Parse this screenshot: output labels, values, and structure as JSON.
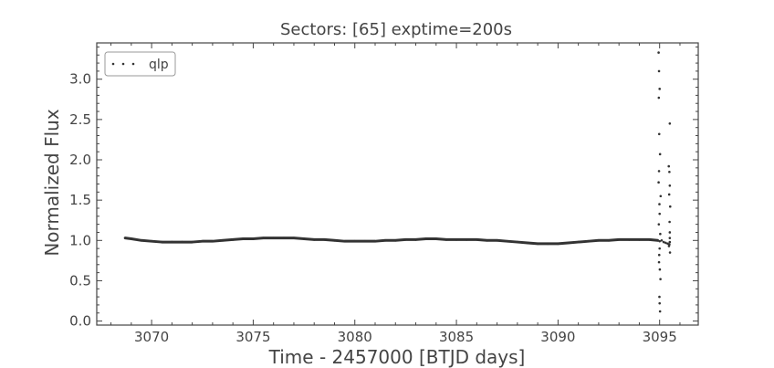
{
  "chart_data": {
    "type": "scatter",
    "title": "Sectors: [65] exptime=200s",
    "xlabel": "Time - 2457000 [BTJD days]",
    "ylabel": "Normalized Flux",
    "xlim": [
      3067.3,
      3096.9
    ],
    "ylim": [
      -0.05,
      3.45
    ],
    "xticks": [
      3070,
      3075,
      3080,
      3085,
      3090,
      3095
    ],
    "xtick_labels": [
      "3070",
      "3075",
      "3080",
      "3085",
      "3090",
      "3095"
    ],
    "yticks": [
      0.0,
      0.5,
      1.0,
      1.5,
      2.0,
      2.5,
      3.0
    ],
    "ytick_labels": [
      "0.0",
      "0.5",
      "1.0",
      "1.5",
      "2.0",
      "2.5",
      "3.0"
    ],
    "grid": false,
    "legend_position": "top-left",
    "series": [
      {
        "name": "qlp",
        "color": "#333333",
        "x": [
          3068.7,
          3069.0,
          3069.5,
          3070.0,
          3070.5,
          3071.0,
          3071.5,
          3072.0,
          3072.5,
          3073.0,
          3073.5,
          3074.0,
          3074.5,
          3075.0,
          3075.5,
          3076.0,
          3076.5,
          3077.0,
          3077.5,
          3078.0,
          3078.5,
          3079.0,
          3079.5,
          3080.0,
          3080.5,
          3081.0,
          3081.5,
          3082.0,
          3082.5,
          3083.0,
          3083.5,
          3084.0,
          3084.5,
          3085.0,
          3085.5,
          3086.0,
          3086.5,
          3087.0,
          3087.5,
          3088.0,
          3088.5,
          3089.0,
          3089.5,
          3090.0,
          3090.5,
          3091.0,
          3091.5,
          3092.0,
          3092.5,
          3093.0,
          3093.5,
          3094.0,
          3094.5,
          3094.9,
          3095.0,
          3095.1,
          3095.2,
          3095.3,
          3095.4,
          3095.5,
          3094.95,
          3094.97,
          3095.0,
          3094.96,
          3094.98,
          3095.02,
          3094.97,
          3094.95,
          3095.05,
          3094.99,
          3095.0,
          3094.96,
          3095.03,
          3095.0,
          3094.98,
          3094.97,
          3095.01,
          3095.04,
          3094.99,
          3095.0,
          3095.02,
          3095.5,
          3095.45,
          3095.48,
          3095.5,
          3095.47,
          3095.52,
          3095.49,
          3095.5,
          3095.46,
          3095.51,
          3095.5,
          3095.48
        ],
        "y": [
          1.03,
          1.02,
          1.0,
          0.99,
          0.98,
          0.98,
          0.98,
          0.98,
          0.99,
          0.99,
          1.0,
          1.01,
          1.02,
          1.02,
          1.03,
          1.03,
          1.03,
          1.03,
          1.02,
          1.01,
          1.01,
          1.0,
          0.99,
          0.99,
          0.99,
          0.99,
          1.0,
          1.0,
          1.01,
          1.01,
          1.02,
          1.02,
          1.01,
          1.01,
          1.01,
          1.01,
          1.0,
          1.0,
          0.99,
          0.98,
          0.97,
          0.96,
          0.96,
          0.96,
          0.97,
          0.98,
          0.99,
          1.0,
          1.0,
          1.01,
          1.01,
          1.01,
          1.01,
          1.0,
          0.99,
          1.0,
          0.98,
          0.97,
          0.96,
          0.98,
          3.33,
          3.1,
          2.88,
          2.77,
          2.32,
          2.07,
          1.86,
          1.72,
          1.55,
          1.45,
          1.33,
          1.2,
          1.08,
          0.9,
          0.82,
          0.73,
          0.64,
          0.52,
          0.3,
          0.22,
          0.12,
          2.45,
          1.92,
          1.85,
          1.68,
          1.57,
          1.42,
          1.23,
          1.1,
          0.93,
          0.85,
          1.03,
          0.95
        ]
      }
    ]
  }
}
